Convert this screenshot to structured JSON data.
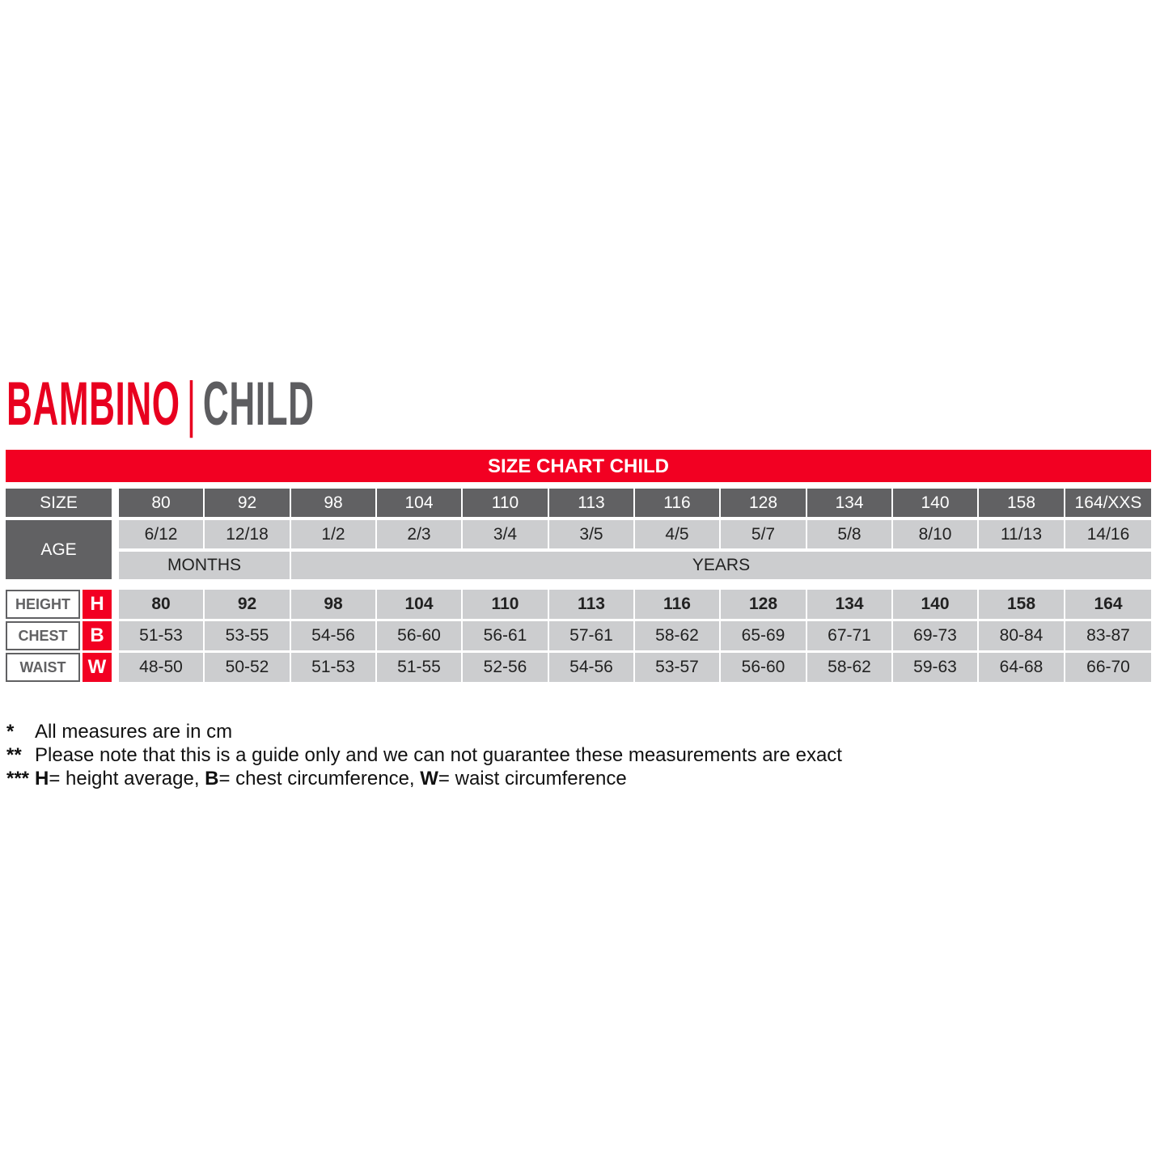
{
  "title": {
    "brand": "BAMBINO",
    "separator": "|",
    "subtitle": "CHILD"
  },
  "banner": "SIZE CHART CHILD",
  "row_labels": {
    "size": "SIZE",
    "age": "AGE"
  },
  "sizes": [
    "80",
    "92",
    "98",
    "104",
    "110",
    "113",
    "116",
    "128",
    "134",
    "140",
    "158",
    "164/XXS"
  ],
  "ages": [
    "6/12",
    "12/18",
    "1/2",
    "2/3",
    "3/4",
    "3/5",
    "4/5",
    "5/7",
    "5/8",
    "8/10",
    "11/13",
    "14/16"
  ],
  "age_units": {
    "months": "MONTHS",
    "years": "YEARS"
  },
  "measures": [
    {
      "label": "HEIGHT",
      "letter": "H",
      "values": [
        "80",
        "92",
        "98",
        "104",
        "110",
        "113",
        "116",
        "128",
        "134",
        "140",
        "158",
        "164"
      ]
    },
    {
      "label": "CHEST",
      "letter": "B",
      "values": [
        "51-53",
        "53-55",
        "54-56",
        "56-60",
        "56-61",
        "57-61",
        "58-62",
        "65-69",
        "67-71",
        "69-73",
        "80-84",
        "83-87"
      ]
    },
    {
      "label": "WAIST",
      "letter": "W",
      "values": [
        "48-50",
        "50-52",
        "51-53",
        "51-55",
        "52-56",
        "54-56",
        "53-57",
        "56-60",
        "58-62",
        "59-63",
        "64-68",
        "66-70"
      ]
    }
  ],
  "notes": [
    {
      "marker": "*",
      "text": "All measures are in cm"
    },
    {
      "marker": "**",
      "text": "Please note that this is a guide only and we can not guarantee these measurements are exact"
    },
    {
      "marker": "***",
      "parts": [
        {
          "b": "H",
          "t": "= height average, "
        },
        {
          "b": "B",
          "t": "= chest circumference, "
        },
        {
          "b": "W",
          "t": "= waist circumference"
        }
      ]
    }
  ],
  "colors": {
    "accent": "#f20022",
    "dark": "#616163",
    "light": "#cccdcf"
  }
}
